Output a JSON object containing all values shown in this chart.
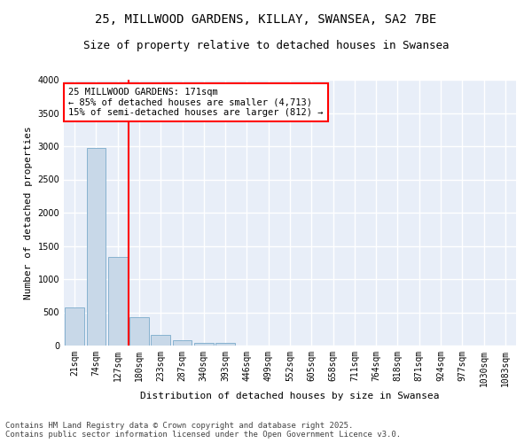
{
  "title_line1": "25, MILLWOOD GARDENS, KILLAY, SWANSEA, SA2 7BE",
  "title_line2": "Size of property relative to detached houses in Swansea",
  "xlabel": "Distribution of detached houses by size in Swansea",
  "ylabel": "Number of detached properties",
  "categories": [
    "21sqm",
    "74sqm",
    "127sqm",
    "180sqm",
    "233sqm",
    "287sqm",
    "340sqm",
    "393sqm",
    "446sqm",
    "499sqm",
    "552sqm",
    "605sqm",
    "658sqm",
    "711sqm",
    "764sqm",
    "818sqm",
    "871sqm",
    "924sqm",
    "977sqm",
    "1030sqm",
    "1083sqm"
  ],
  "values": [
    580,
    2970,
    1340,
    430,
    155,
    75,
    45,
    35,
    0,
    0,
    0,
    0,
    0,
    0,
    0,
    0,
    0,
    0,
    0,
    0,
    0
  ],
  "bar_color": "#c8d8e8",
  "bar_edge_color": "#7aaacb",
  "vline_color": "red",
  "vline_pos": 2.5,
  "annotation_text": "25 MILLWOOD GARDENS: 171sqm\n← 85% of detached houses are smaller (4,713)\n15% of semi-detached houses are larger (812) →",
  "annotation_box_color": "white",
  "annotation_box_edge": "red",
  "ylim": [
    0,
    4000
  ],
  "yticks": [
    0,
    500,
    1000,
    1500,
    2000,
    2500,
    3000,
    3500,
    4000
  ],
  "bg_color": "#e8eef8",
  "grid_color": "white",
  "footer": "Contains HM Land Registry data © Crown copyright and database right 2025.\nContains public sector information licensed under the Open Government Licence v3.0.",
  "title_fontsize": 10,
  "subtitle_fontsize": 9,
  "axis_label_fontsize": 8,
  "tick_fontsize": 7,
  "annotation_fontsize": 7.5,
  "footer_fontsize": 6.5
}
